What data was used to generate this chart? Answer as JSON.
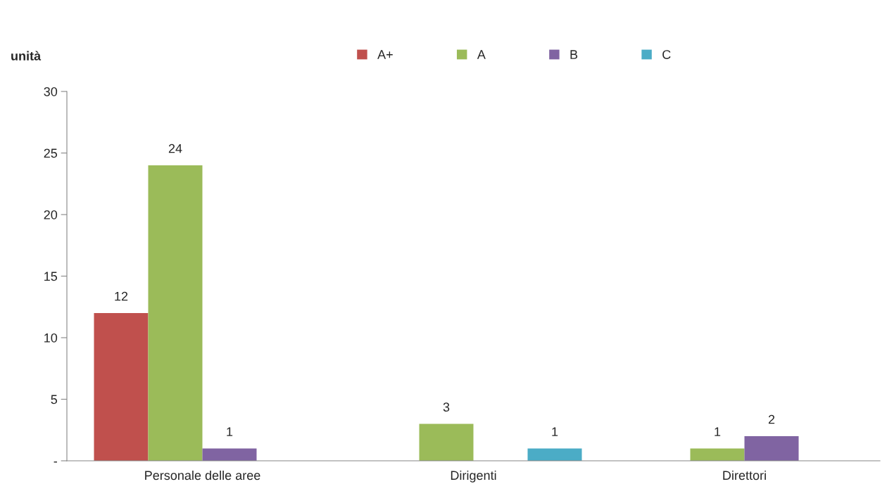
{
  "chart_data": {
    "type": "bar",
    "ylabel": "unità",
    "categories": [
      "Personale delle aree",
      "Dirigenti",
      "Direttori"
    ],
    "series": [
      {
        "name": "A+",
        "color": "#c0504d",
        "values": [
          12,
          null,
          null
        ],
        "value_labels": [
          "12",
          null,
          null
        ]
      },
      {
        "name": "A",
        "color": "#9bbb59",
        "values": [
          24,
          3,
          1
        ],
        "value_labels": [
          "24",
          "3",
          "1"
        ]
      },
      {
        "name": "B",
        "color": "#8064a2",
        "values": [
          1,
          null,
          2
        ],
        "value_labels": [
          "1",
          null,
          "2"
        ]
      },
      {
        "name": "C",
        "color": "#4bacc6",
        "values": [
          null,
          1,
          null
        ],
        "value_labels": [
          null,
          "1",
          null
        ]
      }
    ],
    "ylim": [
      0,
      30
    ],
    "yticks": [
      {
        "value": 0,
        "label": "-"
      },
      5,
      10,
      15,
      20,
      25,
      30
    ],
    "grid": false,
    "legend": "top"
  }
}
